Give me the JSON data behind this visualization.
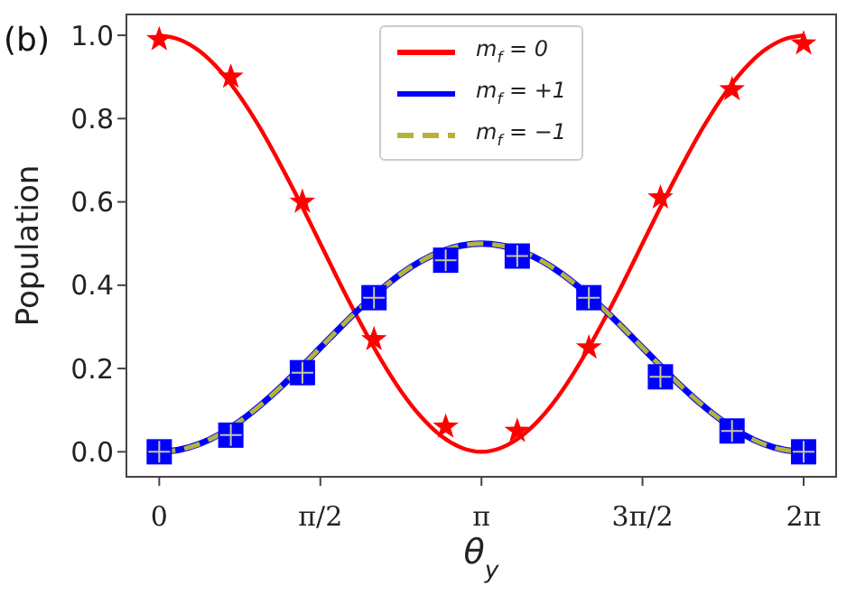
{
  "chart_data": {
    "type": "line",
    "xlabel": "θ$_{y}$",
    "ylabel": "Population",
    "annotations": [
      "(b)"
    ],
    "xlim": [
      -0.32,
      6.6
    ],
    "ylim": [
      -0.06,
      1.05
    ],
    "xticks": [
      {
        "value": 0,
        "label": "0"
      },
      {
        "value": 1.571,
        "label": "π/2"
      },
      {
        "value": 3.142,
        "label": "π"
      },
      {
        "value": 4.712,
        "label": "3π/2"
      },
      {
        "value": 6.283,
        "label": "2π"
      }
    ],
    "yticks": [
      {
        "value": 0,
        "label": "0.0"
      },
      0.2,
      0.4,
      0.6,
      0.8,
      {
        "value": 1,
        "label": "1.0"
      }
    ],
    "grid": false,
    "legend": "top",
    "x": [
      0,
      0.196,
      0.393,
      0.589,
      0.785,
      0.982,
      1.178,
      1.374,
      1.571,
      1.767,
      1.963,
      2.16,
      2.356,
      2.553,
      2.749,
      2.945,
      3.142,
      3.338,
      3.534,
      3.731,
      3.927,
      4.123,
      4.32,
      4.516,
      4.712,
      4.909,
      5.105,
      5.301,
      5.498,
      5.694,
      5.89,
      6.087,
      6.283
    ],
    "series": [
      {
        "name": "m$_{f}$ = 0",
        "color": "#ff0000",
        "marker": "none",
        "line_style": "solid",
        "values": [
          1,
          0.99,
          0.962,
          0.916,
          0.854,
          0.778,
          0.691,
          0.598,
          0.5,
          0.402,
          0.309,
          0.222,
          0.146,
          0.084,
          0.038,
          0.01,
          0,
          0.01,
          0.038,
          0.084,
          0.146,
          0.222,
          0.309,
          0.402,
          0.5,
          0.598,
          0.691,
          0.778,
          0.854,
          0.916,
          0.962,
          0.99,
          1
        ]
      },
      {
        "name": "m$_{f}$ = +1",
        "color": "#0000ff",
        "marker": "none",
        "line_style": "solid",
        "values": [
          0,
          0.005,
          0.019,
          0.042,
          0.073,
          0.111,
          0.154,
          0.201,
          0.25,
          0.299,
          0.346,
          0.389,
          0.427,
          0.458,
          0.481,
          0.495,
          0.5,
          0.495,
          0.481,
          0.458,
          0.427,
          0.389,
          0.346,
          0.299,
          0.25,
          0.201,
          0.154,
          0.111,
          0.073,
          0.042,
          0.019,
          0.005,
          0
        ]
      },
      {
        "name": "m$_{f}$ = −1",
        "color": "#b5b33a",
        "marker": "none",
        "line_style": "dashed",
        "values": [
          0,
          0.005,
          0.019,
          0.042,
          0.073,
          0.111,
          0.154,
          0.201,
          0.25,
          0.299,
          0.346,
          0.389,
          0.427,
          0.458,
          0.481,
          0.495,
          0.5,
          0.495,
          0.481,
          0.458,
          0.427,
          0.389,
          0.346,
          0.299,
          0.25,
          0.201,
          0.154,
          0.111,
          0.073,
          0.042,
          0.019,
          0.005,
          0
        ]
      },
      {
        "type": "scatter",
        "color": "#ff0000",
        "marker": "star",
        "x": [
          0,
          0.698,
          1.396,
          2.094,
          2.793,
          3.491,
          4.189,
          4.887,
          5.585,
          6.283
        ],
        "values": [
          0.99,
          0.9,
          0.6,
          0.27,
          0.06,
          0.05,
          0.25,
          0.61,
          0.87,
          0.98
        ]
      },
      {
        "type": "scatter",
        "color": "#0000ff",
        "marker": "square",
        "x": [
          0,
          0.698,
          1.396,
          2.094,
          2.793,
          3.491,
          4.189,
          4.887,
          5.585,
          6.283
        ],
        "values": [
          0,
          0.04,
          0.19,
          0.37,
          0.46,
          0.47,
          0.37,
          0.18,
          0.05,
          0
        ]
      }
    ]
  }
}
